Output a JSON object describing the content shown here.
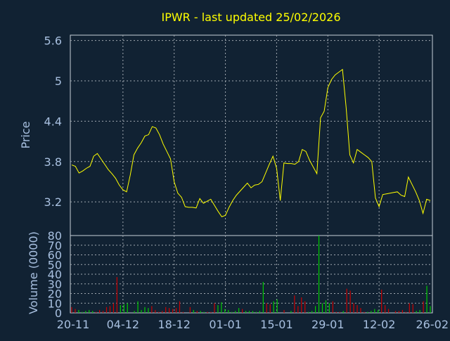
{
  "chart_data": [
    {
      "type": "line",
      "title": "IPWR - last updated 25/02/2026",
      "ylabel": "Price",
      "ylim": [
        2.7,
        5.68
      ],
      "yticks": [
        3.2,
        3.8,
        4.4,
        5,
        5.6
      ],
      "ytick_labels": [
        "3.2",
        "3.8",
        "4.4",
        "5",
        "5.6"
      ],
      "grid": true,
      "colors": {
        "background": "#112233",
        "line": "#FFFF00",
        "grid": "#A0A8B0",
        "text": "#A8C0E0",
        "title": "#FFFF00"
      },
      "series": [
        {
          "values": [
            3.75,
            3.73,
            3.63,
            3.66,
            3.7,
            3.73,
            3.88,
            3.92,
            3.84,
            3.76,
            3.68,
            3.62,
            3.55,
            3.45,
            3.38,
            3.35,
            3.6,
            3.9,
            4.0,
            4.08,
            4.18,
            4.2,
            4.32,
            4.3,
            4.2,
            4.06,
            3.95,
            3.84,
            3.5,
            3.33,
            3.27,
            3.13,
            3.12,
            3.12,
            3.11,
            3.25,
            3.18,
            3.21,
            3.24,
            3.15,
            3.06,
            2.98,
            3.0,
            3.12,
            3.22,
            3.3,
            3.36,
            3.42,
            3.48,
            3.41,
            3.45,
            3.46,
            3.5,
            3.63,
            3.76,
            3.88,
            3.7,
            3.22,
            3.78,
            3.77,
            3.77,
            3.76,
            3.8,
            3.98,
            3.95,
            3.82,
            3.72,
            3.62,
            4.45,
            4.55,
            4.9,
            5.02,
            5.09,
            5.13,
            5.17,
            4.6,
            3.9,
            3.78,
            3.98,
            3.94,
            3.9,
            3.86,
            3.8,
            3.26,
            3.13,
            3.31,
            3.32,
            3.33,
            3.34,
            3.35,
            3.3,
            3.28,
            3.57,
            3.46,
            3.35,
            3.22,
            3.03,
            3.24,
            3.22
          ]
        }
      ]
    },
    {
      "type": "bar",
      "ylabel": "Volume (0000)",
      "ylim": [
        0,
        80
      ],
      "yticks": [
        0,
        10,
        20,
        30,
        40,
        50,
        60,
        70,
        80
      ],
      "ytick_labels": [
        "0",
        "10",
        "20",
        "30",
        "40",
        "50",
        "60",
        "70",
        "80"
      ],
      "xtick_labels": [
        "20-11",
        "04-12",
        "18-12",
        "01-01",
        "15-01",
        "29-01",
        "12-02",
        "26-02"
      ],
      "colors": {
        "up": "#00CC00",
        "down": "#CC0000"
      },
      "series": [
        {
          "values": [
            6,
            4,
            3,
            1,
            2,
            3,
            2,
            1,
            3,
            2,
            6,
            7,
            10,
            37,
            8,
            9,
            10,
            0,
            2,
            12,
            3,
            6,
            5,
            7,
            3,
            1,
            2,
            6,
            5,
            4,
            5,
            12,
            1,
            0,
            6,
            3,
            2,
            2,
            1,
            1,
            1,
            10,
            8,
            11,
            4,
            3,
            1,
            2,
            5,
            4,
            2,
            2,
            2,
            1,
            2,
            32,
            10,
            9,
            12,
            14,
            0,
            3,
            0,
            2,
            18,
            7,
            16,
            12,
            1,
            2,
            7,
            80,
            10,
            13,
            10,
            12,
            1,
            1,
            2,
            25,
            23,
            10,
            8,
            5,
            1,
            1,
            2,
            4,
            3,
            24,
            8,
            4,
            0,
            2,
            2,
            3,
            1,
            10,
            9,
            2,
            3,
            12,
            28,
            7
          ],
          "direction": [
            "d",
            "d",
            "u",
            "u",
            "u",
            "u",
            "u",
            "d",
            "d",
            "d",
            "d",
            "d",
            "d",
            "d",
            "u",
            "u",
            "u",
            "u",
            "u",
            "u",
            "u",
            "u",
            "u",
            "d",
            "d",
            "d",
            "d",
            "d",
            "d",
            "d",
            "d",
            "d",
            "d",
            "d",
            "d",
            "u",
            "d",
            "u",
            "u",
            "d",
            "d",
            "d",
            "u",
            "u",
            "u",
            "u",
            "u",
            "u",
            "u",
            "d",
            "u",
            "u",
            "u",
            "u",
            "u",
            "u",
            "d",
            "d",
            "u",
            "u",
            "d",
            "d",
            "d",
            "u",
            "d",
            "d",
            "d",
            "d",
            "u",
            "u",
            "u",
            "u",
            "u",
            "u",
            "u",
            "d",
            "d",
            "d",
            "u",
            "d",
            "d",
            "d",
            "d",
            "d",
            "d",
            "u",
            "u",
            "u",
            "u",
            "d",
            "d",
            "d",
            "u",
            "d",
            "d",
            "d",
            "d",
            "d",
            "d",
            "u",
            "u",
            "d",
            "u",
            "u"
          ]
        }
      ]
    }
  ]
}
